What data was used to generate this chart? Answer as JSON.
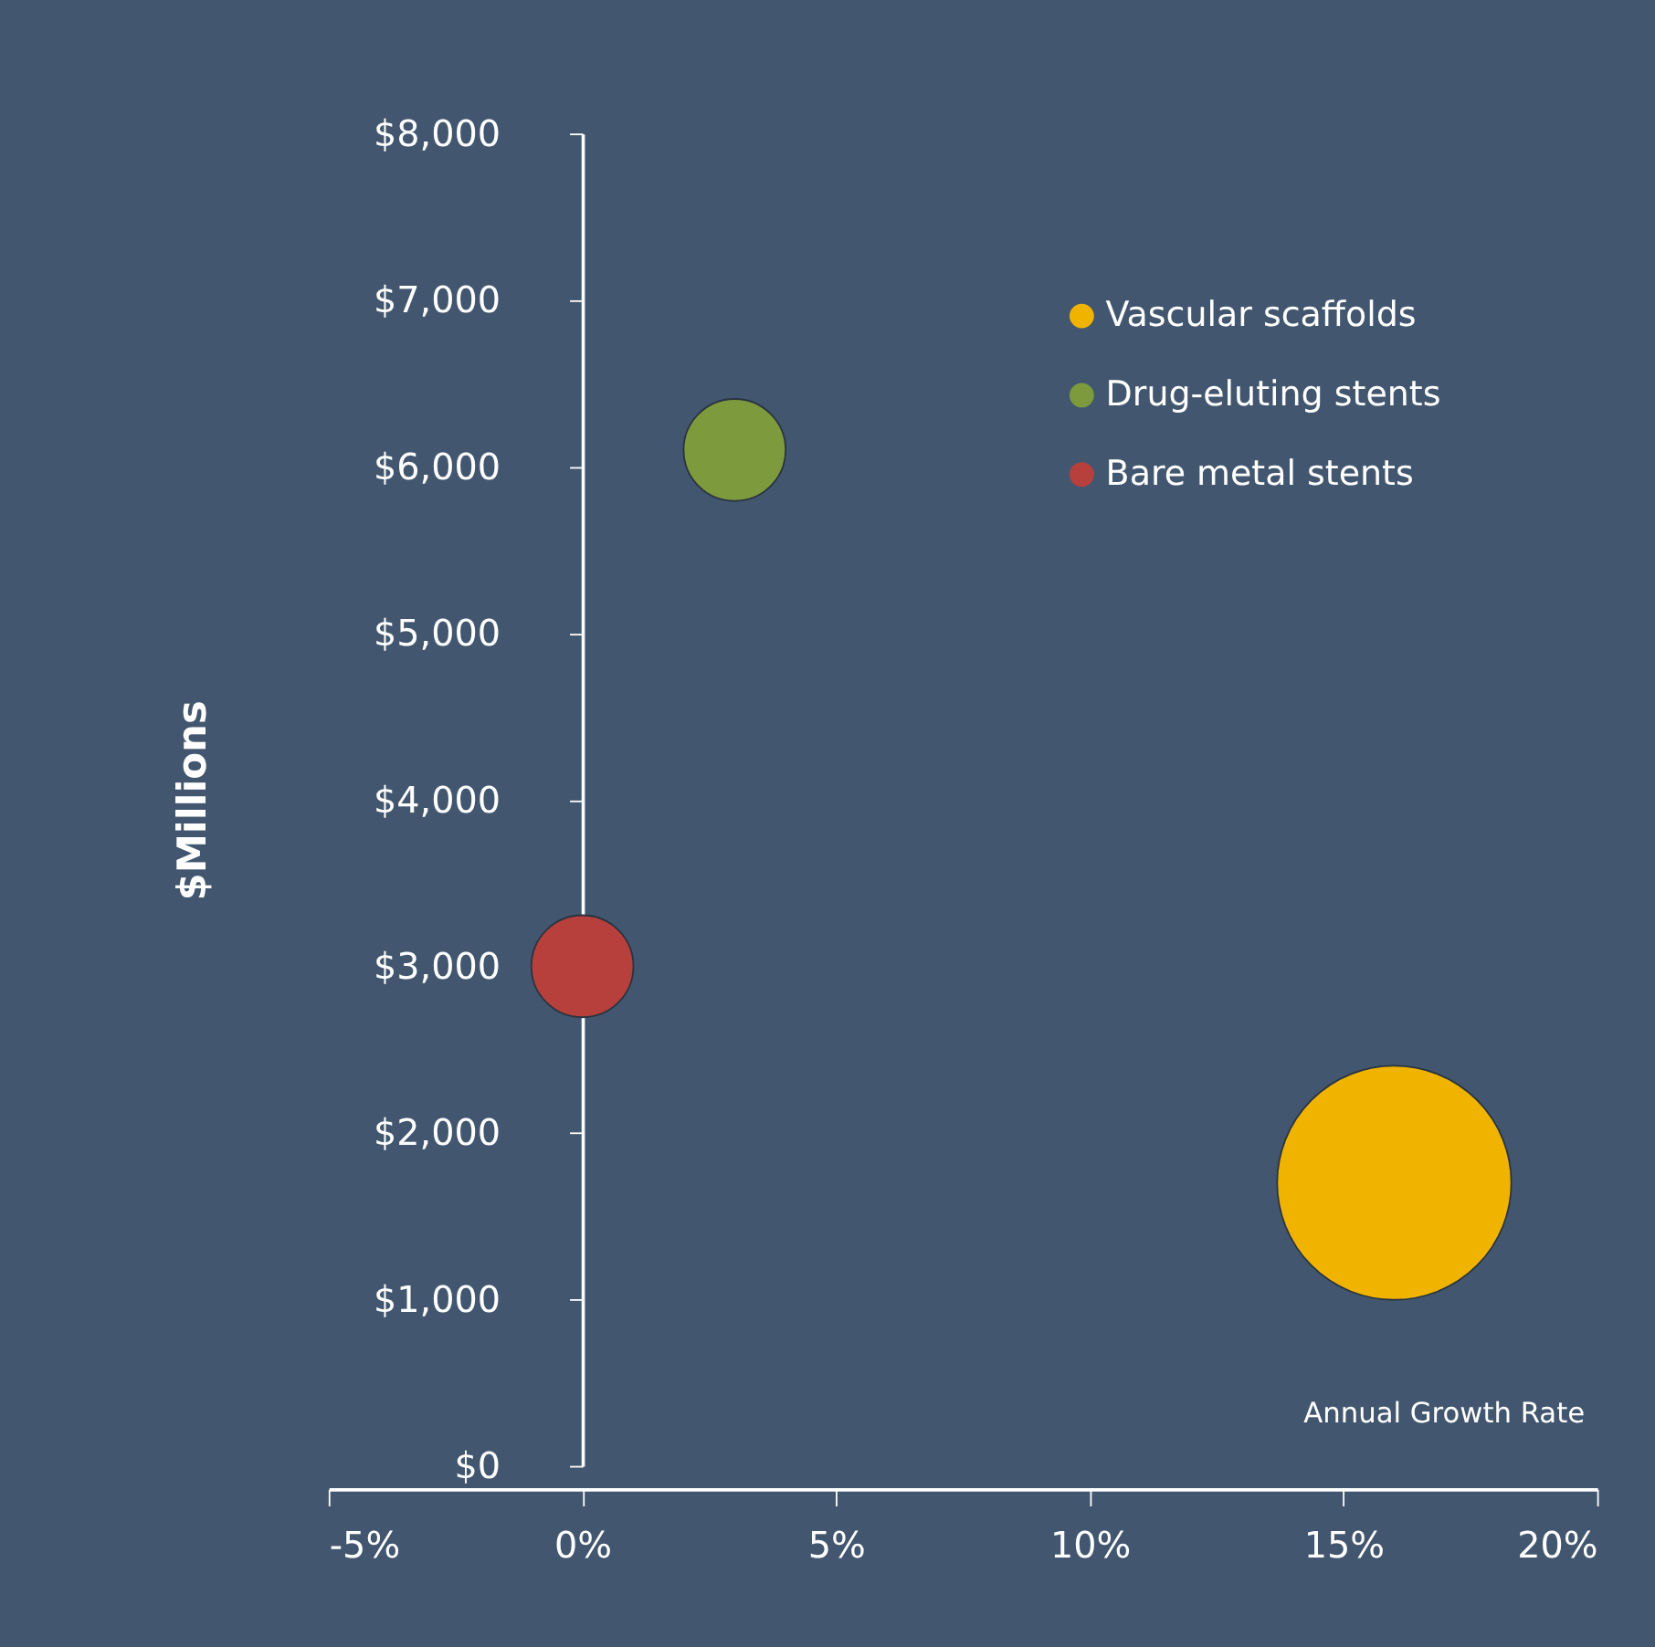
{
  "chart_data": {
    "type": "bubble",
    "xlabel": "Annual Growth Rate",
    "ylabel": "$Millions",
    "series": [
      {
        "name": "Vascular scaffolds",
        "color": "#f0b400",
        "x": [
          16
        ],
        "values": [
          1700
        ],
        "sizes": [
          1
        ]
      },
      {
        "name": "Drug-eluting stents",
        "color": "#7d9a3c",
        "x": [
          3
        ],
        "values": [
          6100
        ],
        "sizes": [
          0.19
        ]
      },
      {
        "name": "Bare metal stents",
        "color": "#b8403c",
        "x": [
          0
        ],
        "values": [
          3000
        ],
        "sizes": [
          0.19
        ]
      }
    ],
    "xlim": [
      -5,
      20
    ],
    "xticks": [
      {
        "value": -5,
        "label": "-5%"
      },
      {
        "value": 0,
        "label": "0%"
      },
      {
        "value": 5,
        "label": "5%"
      },
      {
        "value": 10,
        "label": "10%"
      },
      {
        "value": 15,
        "label": "15%"
      },
      {
        "value": 20,
        "label": "20%"
      }
    ],
    "ylim": [
      0,
      8000
    ],
    "yticks": [
      {
        "value": 0,
        "label": "$0"
      },
      {
        "value": 1000,
        "label": "$1,000"
      },
      {
        "value": 2000,
        "label": "$2,000"
      },
      {
        "value": 3000,
        "label": "$3,000"
      },
      {
        "value": 4000,
        "label": "$4,000"
      },
      {
        "value": 5000,
        "label": "$5,000"
      },
      {
        "value": 6000,
        "label": "$6,000"
      },
      {
        "value": 7000,
        "label": "$7,000"
      },
      {
        "value": 8000,
        "label": "$8,000"
      }
    ],
    "grid": false,
    "legend": "top right",
    "marker": "circle"
  }
}
